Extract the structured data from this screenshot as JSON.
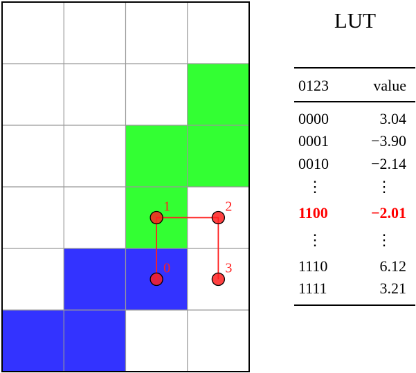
{
  "grid": {
    "cols": 4,
    "rows": 6,
    "cells": [
      {
        "row": 1,
        "col": 3,
        "color": "green"
      },
      {
        "row": 2,
        "col": 2,
        "color": "green"
      },
      {
        "row": 2,
        "col": 3,
        "color": "green"
      },
      {
        "row": 3,
        "col": 2,
        "color": "green"
      },
      {
        "row": 4,
        "col": 1,
        "color": "blue"
      },
      {
        "row": 4,
        "col": 2,
        "color": "blue"
      },
      {
        "row": 5,
        "col": 0,
        "color": "blue"
      },
      {
        "row": 5,
        "col": 1,
        "color": "blue"
      }
    ],
    "points": [
      {
        "label": "0",
        "row": 4,
        "col": 2
      },
      {
        "label": "1",
        "row": 3,
        "col": 2
      },
      {
        "label": "2",
        "row": 3,
        "col": 3
      },
      {
        "label": "3",
        "row": 4,
        "col": 3
      }
    ],
    "path_order": [
      "0",
      "1",
      "2",
      "3"
    ]
  },
  "colors": {
    "green": "#33ff33",
    "blue": "#3333ff",
    "point": "#ff2020",
    "highlight": "#ff0000",
    "grid_line": "#999999"
  },
  "lut": {
    "title": "LUT",
    "header": {
      "key": "0123",
      "value": "value"
    },
    "rows": [
      {
        "key": "0000",
        "value": "3.04"
      },
      {
        "key": "0001",
        "value": "−3.90"
      },
      {
        "key": "0010",
        "value": "−2.14"
      },
      {
        "key": "1100",
        "value": "−2.01",
        "highlight": true
      },
      {
        "key": "1110",
        "value": "6.12"
      },
      {
        "key": "1111",
        "value": "3.21"
      }
    ],
    "ellipsis": "⋮"
  }
}
